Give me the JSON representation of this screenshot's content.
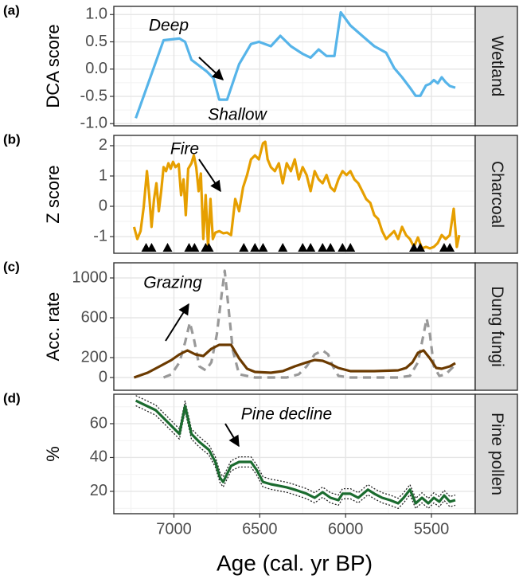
{
  "chart_data": [
    {
      "type": "line",
      "panel_label": "(a)",
      "strip": "Wetland",
      "ylabel": "DCA score",
      "xlim": [
        7350,
        5245
      ],
      "xticks": [
        7000,
        6500,
        6000,
        5500
      ],
      "xminor": [
        7250,
        6750,
        6250,
        5750,
        5250
      ],
      "ylim": [
        -1.04,
        1.15
      ],
      "yticks": [
        {
          "value": 1,
          "label": "1.0"
        },
        0.5,
        {
          "value": 0,
          "label": "0.0"
        },
        -0.5,
        {
          "value": -1,
          "label": "-1.0"
        }
      ],
      "yminor": [
        0.75,
        0.25,
        -0.25,
        -0.75
      ],
      "grid": true,
      "annotations": [
        "Deep",
        "Shallow"
      ],
      "series": [
        {
          "color": "#56b4e9",
          "dash": false,
          "x": [
            7222,
            7060,
            6968,
            6935,
            6898,
            6806,
            6769,
            6736,
            6690,
            6643,
            6620,
            6551,
            6505,
            6435,
            6380,
            6319,
            6250,
            6204,
            6157,
            6111,
            6065,
            6028,
            5972,
            5903,
            5833,
            5764,
            5717,
            5671,
            5625,
            5592,
            5565,
            5532,
            5509,
            5486,
            5463,
            5440,
            5417,
            5393,
            5361
          ],
          "values": [
            -0.9,
            0.53,
            0.56,
            0.5,
            0.17,
            -0.05,
            -0.17,
            -0.56,
            -0.56,
            -0.12,
            0.09,
            0.46,
            0.5,
            0.42,
            0.61,
            0.42,
            0.28,
            0.21,
            0.36,
            0.24,
            0.24,
            1.04,
            0.8,
            0.61,
            0.42,
            0.3,
            0.02,
            -0.15,
            -0.34,
            -0.49,
            -0.49,
            -0.3,
            -0.27,
            -0.2,
            -0.26,
            -0.15,
            -0.24,
            -0.31,
            -0.34
          ]
        }
      ]
    },
    {
      "type": "line",
      "panel_label": "(b)",
      "strip": "Charcoal",
      "ylabel": "Z score",
      "xlim": [
        7350,
        5245
      ],
      "xticks": [
        7000,
        6500,
        6000,
        5500
      ],
      "xminor": [
        7250,
        6750,
        6250,
        5750,
        5250
      ],
      "ylim": [
        -1.55,
        2.34
      ],
      "yticks": [
        2,
        1,
        0,
        -1
      ],
      "yminor": [
        1.5,
        0.5,
        -0.5
      ],
      "grid": true,
      "annotations": [
        "Fire"
      ],
      "series": [
        {
          "color": "#e69f00",
          "dash": false,
          "x": [
            7232,
            7213,
            7194,
            7176,
            7157,
            7144,
            7130,
            7116,
            7102,
            7088,
            7074,
            7060,
            7046,
            7032,
            7019,
            7005,
            6991,
            6972,
            6958,
            6944,
            6931,
            6917,
            6898,
            6884,
            6870,
            6856,
            6843,
            6829,
            6815,
            6801,
            6787,
            6773,
            6759,
            6736,
            6713,
            6690,
            6667,
            6643,
            6620,
            6597,
            6574,
            6551,
            6528,
            6505,
            6481,
            6468,
            6454,
            6435,
            6412,
            6389,
            6366,
            6343,
            6319,
            6296,
            6273,
            6250,
            6227,
            6204,
            6180,
            6157,
            6134,
            6111,
            6088,
            6065,
            6042,
            6018,
            5995,
            5972,
            5949,
            5926,
            5903,
            5880,
            5856,
            5833,
            5810,
            5787,
            5764,
            5741,
            5717,
            5694,
            5671,
            5648,
            5625,
            5602,
            5579,
            5555,
            5532,
            5509,
            5486,
            5463,
            5440,
            5417,
            5393,
            5370,
            5352,
            5338
          ],
          "values": [
            -0.68,
            -1.08,
            -0.82,
            -0.03,
            1.16,
            0.37,
            -0.68,
            0.24,
            0.76,
            -0.16,
            0.5,
            1.29,
            1.16,
            1.42,
            1.24,
            1.47,
            1.29,
            1.39,
            0.37,
            0.89,
            -0.29,
            1.24,
            1.42,
            1.68,
            1.29,
            0.5,
            1.08,
            -1.08,
            0.37,
            -1.34,
            0.24,
            -1.08,
            -0.87,
            -0.82,
            -0.89,
            -0.87,
            -0.95,
            0.24,
            -0.16,
            0.63,
            1.03,
            1.55,
            1.68,
            1.55,
            2.08,
            2.13,
            1.55,
            1.29,
            1.16,
            1.42,
            0.76,
            1.42,
            1.16,
            1.55,
            0.89,
            1.29,
            1.03,
            0.5,
            1.16,
            0.89,
            0.76,
            1.03,
            0.63,
            0.5,
            0.89,
            1.16,
            1.03,
            1.16,
            0.89,
            0.76,
            0.5,
            0.24,
            0.11,
            -0.29,
            -0.42,
            -0.82,
            -1.08,
            -0.95,
            -0.82,
            -1.08,
            -0.68,
            -0.95,
            -1.08,
            -1.34,
            -1.03,
            -1.39,
            -1.34,
            -1.39,
            -1.34,
            -1.21,
            -0.95,
            -1.08,
            -0.95,
            -0.08,
            -1.34,
            -0.95
          ]
        }
      ],
      "markers": [
        7162,
        7130,
        7037,
        6912,
        6880,
        6815,
        6796,
        6593,
        6528,
        6481,
        6366,
        6250,
        6204,
        6134,
        6088,
        6018,
        5972,
        5602,
        5565,
        5426,
        5393
      ],
      "marker_color": "#000000"
    },
    {
      "type": "line",
      "panel_label": "(c)",
      "strip": "Dung fungi",
      "ylabel": "Acc. rate",
      "xlim": [
        7350,
        5245
      ],
      "xticks": [
        7000,
        6500,
        6000,
        5500
      ],
      "xminor": [
        7250,
        6750,
        6250,
        5750,
        5250
      ],
      "ylim": [
        -128,
        1152
      ],
      "yticks": [
        1000,
        600,
        200,
        0
      ],
      "yminor": [
        800,
        400
      ],
      "grid": true,
      "annotations": [
        "Grazing"
      ],
      "series": [
        {
          "color": "#999999",
          "dash": true,
          "x": [
            7060,
            7014,
            6968,
            6935,
            6907,
            6884,
            6852,
            6815,
            6782,
            6750,
            6722,
            6704,
            6685,
            6657,
            6620,
            6528,
            6343,
            6273,
            6227,
            6180,
            6134,
            6102,
            6074,
            6042,
            5972,
            5694,
            5625,
            5579,
            5546,
            5528,
            5509,
            5486,
            5454,
            5417,
            5361
          ],
          "values": [
            0,
            32,
            152,
            352,
            552,
            392,
            112,
            72,
            152,
            432,
            832,
            1072,
            752,
            272,
            32,
            0,
            0,
            32,
            112,
            232,
            272,
            232,
            112,
            16,
            0,
            0,
            16,
            152,
            432,
            592,
            432,
            112,
            16,
            32,
            128
          ]
        },
        {
          "color": "#6b3a00",
          "dash": false,
          "x": [
            7232,
            7153,
            7083,
            7014,
            6968,
            6921,
            6875,
            6829,
            6782,
            6736,
            6667,
            6620,
            6574,
            6528,
            6435,
            6366,
            6296,
            6227,
            6180,
            6134,
            6088,
            6042,
            5972,
            5833,
            5694,
            5648,
            5611,
            5579,
            5546,
            5509,
            5472,
            5440,
            5393,
            5361
          ],
          "values": [
            0,
            48,
            112,
            176,
            232,
            272,
            232,
            216,
            288,
            328,
            328,
            192,
            88,
            56,
            48,
            64,
            112,
            152,
            176,
            168,
            136,
            96,
            64,
            64,
            72,
            96,
            152,
            248,
            272,
            192,
            96,
            88,
            112,
            144
          ]
        }
      ]
    },
    {
      "type": "line",
      "panel_label": "(d)",
      "strip": "Pine pollen",
      "ylabel": "%",
      "xlabel": "Age (cal. yr BP)",
      "xlim": [
        7350,
        5245
      ],
      "xticks": [
        7000,
        6500,
        6000,
        5500
      ],
      "xminor": [
        7250,
        6750,
        6250,
        5750,
        5250
      ],
      "ylim": [
        6.8,
        77.4
      ],
      "yticks": [
        60,
        40,
        20
      ],
      "yminor": [
        70,
        50,
        30,
        10
      ],
      "grid": true,
      "annotations": [
        "Pine decline"
      ],
      "series": [
        {
          "color": "#222222",
          "dotted": true,
          "x": [
            7222,
            7106,
            7014,
            6968,
            6935,
            6898,
            6852,
            6796,
            6759,
            6731,
            6713,
            6667,
            6620,
            6551,
            6518,
            6481,
            6435,
            6389,
            6343,
            6296,
            6227,
            6180,
            6134,
            6088,
            6042,
            6018,
            5972,
            5926,
            5870,
            5833,
            5787,
            5741,
            5694,
            5662,
            5625,
            5592,
            5555,
            5518,
            5486,
            5454,
            5426,
            5393,
            5361
          ],
          "values": [
            76.6,
            71.0,
            61.6,
            56.9,
            73.4,
            56.9,
            52.2,
            47.5,
            40.4,
            31.0,
            28.6,
            38.1,
            40.4,
            40.4,
            35.7,
            28.6,
            27.2,
            26.3,
            25.4,
            24.0,
            21.6,
            19.2,
            22.5,
            19.2,
            17.8,
            21.6,
            21.6,
            19.2,
            24.0,
            21.6,
            19.2,
            17.8,
            15.9,
            19.2,
            24.0,
            15.9,
            19.2,
            15.9,
            19.2,
            16.9,
            20.6,
            16.9,
            17.8
          ]
        },
        {
          "color": "#222222",
          "dotted": true,
          "x": [
            7222,
            7106,
            7014,
            6968,
            6935,
            6898,
            6852,
            6796,
            6759,
            6731,
            6713,
            6667,
            6620,
            6551,
            6518,
            6481,
            6435,
            6389,
            6343,
            6296,
            6227,
            6180,
            6134,
            6088,
            6042,
            6018,
            5972,
            5926,
            5870,
            5833,
            5787,
            5741,
            5694,
            5662,
            5625,
            5592,
            5555,
            5518,
            5486,
            5454,
            5426,
            5393,
            5361
          ],
          "values": [
            70.6,
            65.0,
            55.6,
            50.9,
            67.4,
            50.9,
            46.2,
            41.5,
            34.4,
            25.0,
            22.6,
            32.1,
            34.4,
            34.4,
            29.7,
            22.6,
            21.2,
            20.3,
            19.4,
            18.0,
            15.6,
            13.2,
            16.5,
            13.2,
            11.8,
            15.6,
            15.6,
            13.2,
            18.0,
            15.6,
            13.2,
            11.8,
            9.9,
            13.2,
            18.0,
            9.9,
            13.2,
            9.9,
            13.2,
            10.9,
            14.6,
            10.9,
            11.8
          ]
        },
        {
          "color": "#1b6b2f",
          "dash": false,
          "x": [
            7222,
            7106,
            7014,
            6968,
            6935,
            6898,
            6852,
            6796,
            6759,
            6731,
            6713,
            6667,
            6620,
            6551,
            6518,
            6481,
            6435,
            6389,
            6343,
            6296,
            6227,
            6180,
            6134,
            6088,
            6042,
            6018,
            5972,
            5926,
            5870,
            5833,
            5787,
            5741,
            5694,
            5662,
            5625,
            5592,
            5555,
            5518,
            5486,
            5454,
            5426,
            5393,
            5361
          ],
          "values": [
            73.6,
            68.0,
            58.6,
            53.9,
            70.4,
            53.9,
            49.2,
            44.5,
            37.4,
            28.0,
            25.6,
            35.1,
            37.4,
            37.4,
            32.7,
            25.6,
            24.2,
            23.3,
            22.4,
            21.0,
            18.6,
            16.2,
            19.5,
            16.2,
            14.8,
            18.6,
            18.6,
            16.2,
            21.0,
            18.6,
            16.2,
            14.8,
            12.9,
            16.2,
            21.0,
            12.9,
            16.2,
            12.9,
            16.2,
            13.9,
            17.6,
            13.9,
            14.8
          ]
        }
      ]
    }
  ]
}
